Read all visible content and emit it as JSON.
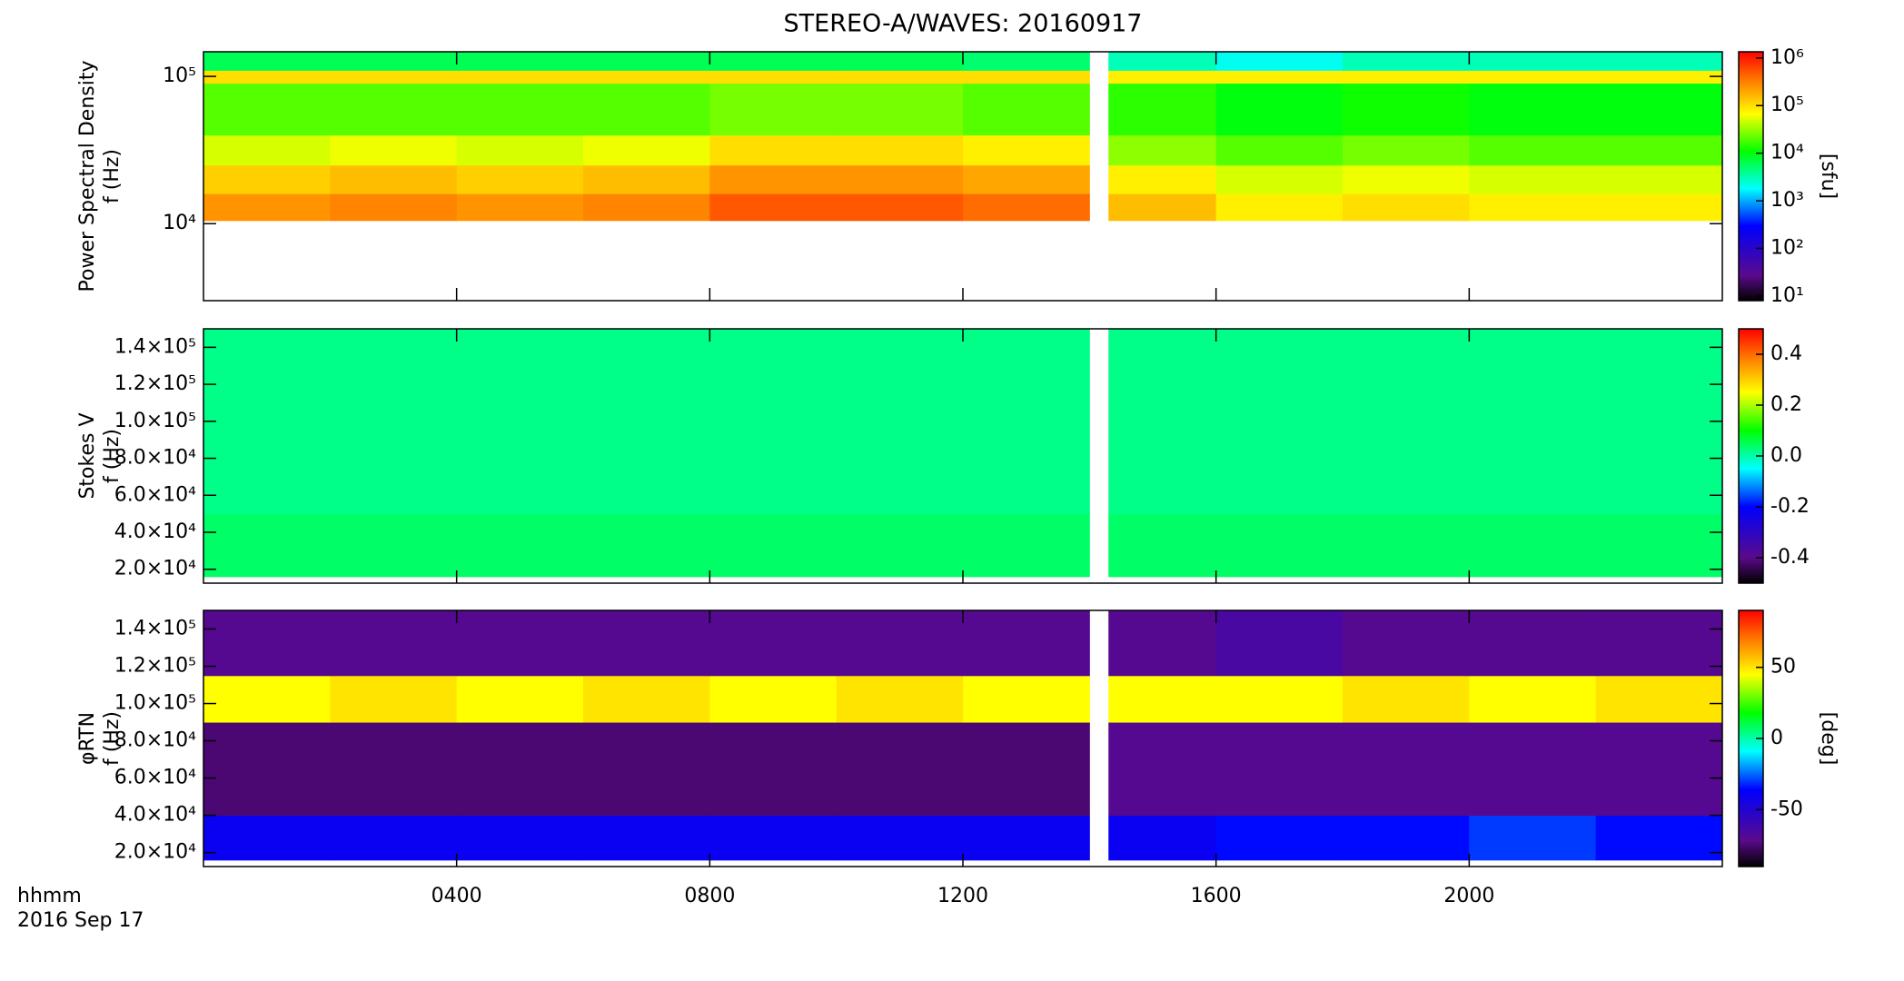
{
  "title": "STEREO-A/WAVES: 20160917",
  "xlabel": [
    "hhmm",
    "2016 Sep 17"
  ],
  "chart_data": [
    {
      "type": "heatmap",
      "ylabel": [
        "Power Spectral Density",
        "f (Hz)"
      ],
      "log_y": true,
      "xlim": [
        0,
        24
      ],
      "ylim": [
        3000,
        147000
      ],
      "yticks": [
        {
          "value": 10000,
          "label": "10⁴"
        },
        {
          "value": 100000,
          "label": "10⁵"
        }
      ],
      "xbins": [
        0,
        2,
        4,
        6,
        8,
        10,
        12,
        14,
        14.3,
        16,
        18,
        20,
        22,
        24
      ],
      "ybins": [
        10500,
        16000,
        25000,
        40000,
        90000,
        110000,
        147000
      ],
      "values": [
        [
          250000,
          300000,
          250000,
          300000,
          500000,
          500000,
          400000,
          null,
          150000,
          80000,
          100000,
          80000,
          80000
        ],
        [
          120000,
          150000,
          120000,
          150000,
          250000,
          250000,
          200000,
          null,
          80000,
          50000,
          60000,
          50000,
          50000
        ],
        [
          50000,
          60000,
          50000,
          60000,
          100000,
          100000,
          80000,
          null,
          30000,
          20000,
          25000,
          20000,
          20000
        ],
        [
          20000,
          20000,
          20000,
          20000,
          25000,
          25000,
          20000,
          null,
          15000,
          10000,
          12000,
          10000,
          10000
        ],
        [
          100000,
          100000,
          100000,
          100000,
          100000,
          100000,
          100000,
          null,
          80000,
          80000,
          80000,
          80000,
          80000
        ],
        [
          6000,
          6000,
          6000,
          6000,
          6000,
          6000,
          5000,
          null,
          3000,
          2000,
          3000,
          3000,
          3000
        ]
      ],
      "log_color": true,
      "clim": [
        8,
        1350000
      ],
      "colorbar_label": "[sfu]",
      "cticks": [
        {
          "value": 10,
          "label": "10¹"
        },
        {
          "value": 100,
          "label": "10²"
        },
        {
          "value": 1000,
          "label": "10³"
        },
        {
          "value": 10000,
          "label": "10⁴"
        },
        {
          "value": 100000,
          "label": "10⁵"
        },
        {
          "value": 1000000,
          "label": "10⁶"
        }
      ]
    },
    {
      "type": "heatmap",
      "ylabel": [
        "Stokes V",
        "f (Hz)"
      ],
      "log_y": false,
      "xlim": [
        0,
        24
      ],
      "ylim": [
        12500,
        150000
      ],
      "yticks": [
        {
          "value": 20000,
          "label": "2.0×10⁴"
        },
        {
          "value": 40000,
          "label": "4.0×10⁴"
        },
        {
          "value": 60000,
          "label": "6.0×10⁴"
        },
        {
          "value": 80000,
          "label": "8.0×10⁴"
        },
        {
          "value": 100000,
          "label": "1.0×10⁵"
        },
        {
          "value": 120000,
          "label": "1.2×10⁵"
        },
        {
          "value": 140000,
          "label": "1.4×10⁵"
        }
      ],
      "xbins": [
        0,
        2,
        4,
        6,
        8,
        10,
        12,
        14,
        14.3,
        16,
        18,
        20,
        22,
        24
      ],
      "ybins": [
        16000,
        50000,
        150000
      ],
      "values": [
        [
          0.04,
          0.04,
          0.04,
          0.04,
          0.04,
          0.04,
          0.04,
          null,
          0.04,
          0.04,
          0.04,
          0.04,
          0.04
        ],
        [
          0.02,
          0.02,
          0.02,
          0.02,
          0.02,
          0.02,
          0.02,
          null,
          0.02,
          0.02,
          0.02,
          0.02,
          0.02
        ]
      ],
      "log_color": false,
      "clim": [
        -0.5,
        0.5
      ],
      "cticks": [
        -0.4,
        -0.2,
        {
          "value": 0,
          "label": "0.0"
        },
        0.2,
        0.4
      ]
    },
    {
      "type": "heatmap",
      "ylabel": [
        "φRTN",
        "f (Hz)"
      ],
      "log_y": false,
      "xlim": [
        0,
        24
      ],
      "ylim": [
        12500,
        150000
      ],
      "yticks": [
        {
          "value": 20000,
          "label": "2.0×10⁴"
        },
        {
          "value": 40000,
          "label": "4.0×10⁴"
        },
        {
          "value": 60000,
          "label": "6.0×10⁴"
        },
        {
          "value": 80000,
          "label": "8.0×10⁴"
        },
        {
          "value": 100000,
          "label": "1.0×10⁵"
        },
        {
          "value": 120000,
          "label": "1.2×10⁵"
        },
        {
          "value": 140000,
          "label": "1.4×10⁵"
        }
      ],
      "xticks": [
        {
          "value": 4,
          "label": "0400"
        },
        {
          "value": 8,
          "label": "0800"
        },
        {
          "value": 12,
          "label": "1200"
        },
        {
          "value": 16,
          "label": "1600"
        },
        {
          "value": 20,
          "label": "2000"
        }
      ],
      "xbins": [
        0,
        2,
        4,
        6,
        8,
        10,
        12,
        14,
        14.3,
        16,
        18,
        20,
        22,
        24
      ],
      "ybins": [
        16000,
        40000,
        90000,
        115000,
        150000
      ],
      "values": [
        [
          -40,
          -40,
          -40,
          -40,
          -40,
          -40,
          -40,
          null,
          -40,
          -35,
          -35,
          -30,
          -35
        ],
        [
          -75,
          -75,
          -75,
          -75,
          -75,
          -75,
          -75,
          null,
          -70,
          -70,
          -70,
          -70,
          -70
        ],
        [
          45,
          50,
          45,
          50,
          45,
          50,
          45,
          null,
          45,
          45,
          50,
          45,
          50
        ],
        [
          -70,
          -70,
          -70,
          -70,
          -70,
          -70,
          -70,
          null,
          -70,
          -65,
          -70,
          -70,
          -70
        ]
      ],
      "log_color": false,
      "clim": [
        -90,
        90
      ],
      "colorbar_label": "[deg]",
      "cticks": [
        -50,
        0,
        50
      ]
    }
  ]
}
